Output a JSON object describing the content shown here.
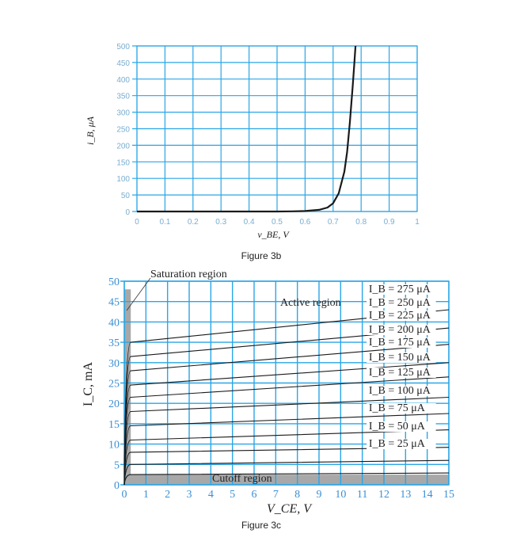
{
  "figure_b": {
    "caption": "Figure 3b",
    "xlabel": "v_BE, V",
    "ylabel": "i_B, μA"
  },
  "figure_c": {
    "caption": "Figure 3c",
    "xlabel": "V_CE, V",
    "ylabel": "I_C, mA",
    "annotations": {
      "saturation": "Saturation region",
      "active": "Active region",
      "cutoff": "Cutoff region"
    }
  },
  "colors": {
    "grid": "#2aa6e6",
    "curve": "#1a1a1a",
    "region_fill": "#a8a8a8",
    "tick_b": "#7aaed0",
    "tick_c": "#3a8fd6"
  },
  "chart_data": [
    {
      "type": "line",
      "name": "Figure 3b",
      "xlabel": "v_BE, V",
      "ylabel": "i_B, μA",
      "xlim": [
        0,
        1
      ],
      "ylim": [
        0,
        500
      ],
      "xticks": [
        "0",
        "0.1",
        "0.2",
        "0.3",
        "0.4",
        "0.5",
        "0.6",
        "0.7",
        "0.8",
        "0.9",
        "1"
      ],
      "yticks": [
        "0",
        "50",
        "100",
        "150",
        "200",
        "250",
        "300",
        "350",
        "400",
        "450",
        "500"
      ],
      "grid": true,
      "series": [
        {
          "x": [
            0,
            0.5,
            0.55,
            0.6,
            0.65,
            0.68,
            0.7,
            0.72,
            0.74,
            0.75,
            0.76,
            0.77,
            0.775,
            0.78
          ],
          "y": [
            0,
            0,
            0.5,
            1.5,
            5,
            12,
            25,
            55,
            120,
            180,
            270,
            380,
            440,
            500
          ]
        }
      ]
    },
    {
      "type": "line",
      "name": "Figure 3c",
      "xlabel": "V_CE, V",
      "ylabel": "I_C, mA",
      "xlim": [
        0,
        15
      ],
      "ylim": [
        0,
        50
      ],
      "xticks": [
        "0",
        "1",
        "2",
        "3",
        "4",
        "5",
        "6",
        "7",
        "8",
        "9",
        "10",
        "11",
        "12",
        "13",
        "14",
        "15"
      ],
      "yticks": [
        "0",
        "5",
        "10",
        "15",
        "20",
        "25",
        "30",
        "35",
        "40",
        "45",
        "50"
      ],
      "grid": true,
      "series": [
        {
          "name": "I_B = 25 μA",
          "x": [
            0,
            0.3,
            15
          ],
          "y": [
            0,
            2.5,
            2.9
          ]
        },
        {
          "name": "I_B = 50 μA",
          "x": [
            0,
            0.3,
            15
          ],
          "y": [
            0,
            5.0,
            6.0
          ]
        },
        {
          "name": "I_B = 75 μA",
          "x": [
            0,
            0.3,
            15
          ],
          "y": [
            0,
            8.0,
            9.2
          ]
        },
        {
          "name": "I_B = 100 μA",
          "x": [
            0,
            0.3,
            15
          ],
          "y": [
            0,
            11.0,
            13.5
          ]
        },
        {
          "name": "I_B = 125 μA",
          "x": [
            0,
            0.3,
            15
          ],
          "y": [
            0,
            14.5,
            17.5
          ]
        },
        {
          "name": "I_B = 150 μA",
          "x": [
            0,
            0.3,
            15
          ],
          "y": [
            0,
            18.0,
            21.5
          ]
        },
        {
          "name": "I_B = 175 μA",
          "x": [
            0,
            0.3,
            15
          ],
          "y": [
            0,
            21.5,
            26.5
          ]
        },
        {
          "name": "I_B = 200 μA",
          "x": [
            0,
            0.3,
            15
          ],
          "y": [
            0,
            24.5,
            30.0
          ]
        },
        {
          "name": "I_B = 225 μA",
          "x": [
            0,
            0.3,
            15
          ],
          "y": [
            0,
            28.0,
            34.5
          ]
        },
        {
          "name": "I_B = 250 μA",
          "x": [
            0,
            0.3,
            15
          ],
          "y": [
            0,
            31.5,
            38.5
          ]
        },
        {
          "name": "I_B = 275 μA",
          "x": [
            0,
            0.3,
            15
          ],
          "y": [
            0,
            35.0,
            43.0
          ]
        }
      ],
      "series_labels": [
        "I_B = 275 μA",
        "I_B = 250 μA",
        "I_B = 225 μA",
        "I_B = 200 μA",
        "I_B = 175 μA",
        "I_B = 150 μA",
        "I_B = 125 μA",
        "I_B = 100 μA",
        "I_B = 75 μA",
        "I_B = 50 μA",
        "I_B = 25 μA"
      ],
      "saturation_vce_max": 0.3,
      "cutoff_ic_max": 1
    }
  ]
}
